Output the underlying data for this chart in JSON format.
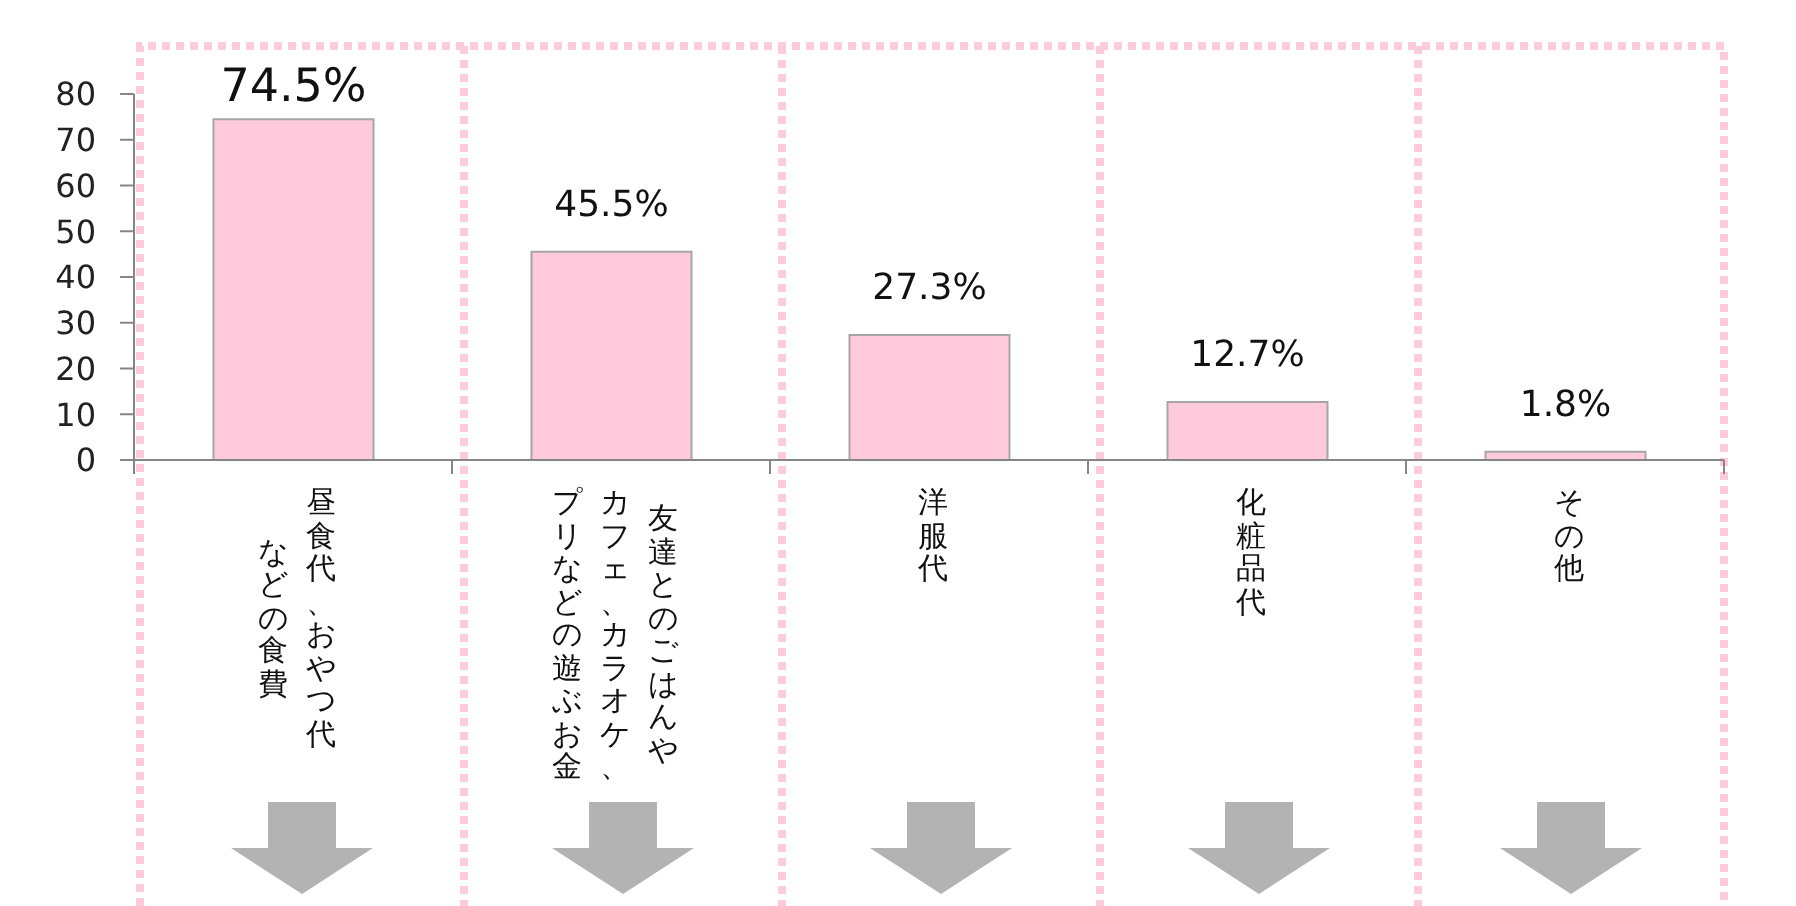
{
  "chart_data": {
    "type": "bar",
    "categories": [
      "昼食代、おやつ代などの食費",
      "友達とのごはんやカフェ、カラオケ、プリなどの遊ぶお金",
      "洋服代",
      "化粧品代",
      "その他"
    ],
    "values": [
      74.5,
      45.5,
      27.3,
      12.7,
      1.8
    ],
    "value_labels": [
      "74.5%",
      "45.5%",
      "27.3%",
      "12.7%",
      "1.8%"
    ],
    "color": "#ffcadb",
    "ylim": [
      0,
      80
    ],
    "yticks": [
      0,
      10,
      20,
      30,
      40,
      50,
      60,
      70,
      80
    ]
  }
}
